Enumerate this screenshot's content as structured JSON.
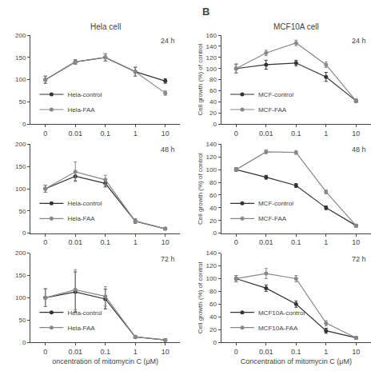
{
  "title": "B",
  "chart_data": [
    {
      "type": "line",
      "title": "Hela cell",
      "categories": [
        "0",
        "0.01",
        "0.1",
        "1",
        "10"
      ],
      "series": [
        {
          "name": "Hela-control",
          "color": "#333333",
          "values": [
            100,
            140,
            150,
            118,
            97
          ],
          "errors": [
            8,
            5,
            8,
            10,
            5
          ]
        },
        {
          "name": "Hela-FAA",
          "color": "#888888",
          "values": [
            100,
            140,
            150,
            118,
            70
          ],
          "errors": [
            8,
            5,
            8,
            10,
            5
          ]
        }
      ],
      "ylim": [
        0,
        200
      ],
      "yticks": [
        0,
        50,
        100,
        150,
        200
      ],
      "annotations": [
        "24 h"
      ],
      "legend": "lower left",
      "grid": false,
      "marker": "circle",
      "line_style": "solid"
    },
    {
      "type": "line",
      "title": "MCF10A cell",
      "categories": [
        "0",
        "0.01",
        "0.1",
        "1",
        "10"
      ],
      "series": [
        {
          "name": "MCF-control",
          "color": "#333333",
          "values": [
            100,
            107,
            110,
            85,
            42
          ],
          "errors": [
            8,
            8,
            5,
            8,
            3
          ]
        },
        {
          "name": "MCF-FAA",
          "color": "#888888",
          "values": [
            100,
            128,
            146,
            107,
            42
          ],
          "errors": [
            8,
            5,
            5,
            5,
            3
          ]
        }
      ],
      "ylim": [
        0,
        160
      ],
      "yticks": [
        0,
        20,
        40,
        60,
        80,
        100,
        120,
        140,
        160
      ],
      "ylabel": "Cell growth (%) of control",
      "annotations": [
        "24 h"
      ],
      "legend": "lower left",
      "grid": false,
      "marker": "circle",
      "line_style": "solid"
    },
    {
      "type": "line",
      "categories": [
        "0",
        "0.01",
        "0.1",
        "1",
        "10"
      ],
      "series": [
        {
          "name": "Hela-control",
          "color": "#333333",
          "values": [
            100,
            128,
            112,
            27,
            10
          ],
          "errors": [
            8,
            10,
            8,
            5,
            2
          ]
        },
        {
          "name": "Hela-FAA",
          "color": "#888888",
          "values": [
            100,
            138,
            120,
            27,
            10
          ],
          "errors": [
            8,
            22,
            10,
            5,
            2
          ]
        }
      ],
      "ylim": [
        0,
        200
      ],
      "yticks": [
        0,
        50,
        100,
        150,
        200
      ],
      "annotations": [
        "48 h"
      ],
      "legend": "lower left",
      "grid": false,
      "marker": "circle",
      "line_style": "solid"
    },
    {
      "type": "line",
      "categories": [
        "0",
        "0.01",
        "0.1",
        "1",
        "10"
      ],
      "series": [
        {
          "name": "MCF-control",
          "color": "#333333",
          "values": [
            100,
            88,
            75,
            40,
            12
          ],
          "errors": [
            3,
            3,
            3,
            3,
            2
          ]
        },
        {
          "name": "MCF-FAA",
          "color": "#888888",
          "values": [
            100,
            128,
            127,
            65,
            12
          ],
          "errors": [
            3,
            3,
            3,
            3,
            2
          ]
        }
      ],
      "ylim": [
        0,
        140
      ],
      "yticks": [
        0,
        20,
        40,
        60,
        80,
        100,
        120,
        140
      ],
      "ylabel": "Cell growth (%) of control",
      "annotations": [
        "48 h"
      ],
      "legend": "lower left",
      "grid": false,
      "marker": "circle",
      "line_style": "solid"
    },
    {
      "type": "line",
      "categories": [
        "0",
        "0.01",
        "0.1",
        "1",
        "10"
      ],
      "series": [
        {
          "name": "Hela-control",
          "color": "#333333",
          "values": [
            100,
            113,
            97,
            12,
            5
          ],
          "errors": [
            20,
            45,
            22,
            3,
            2
          ]
        },
        {
          "name": "Hela-FAA",
          "color": "#888888",
          "values": [
            100,
            118,
            103,
            12,
            5
          ],
          "errors": [
            20,
            45,
            22,
            3,
            2
          ]
        }
      ],
      "ylim": [
        0,
        200
      ],
      "yticks": [
        0,
        50,
        100,
        150,
        200
      ],
      "xlabel": "oncentration of mitomycin C (μM)",
      "annotations": [
        "72 h"
      ],
      "legend": "lower left",
      "grid": false,
      "marker": "circle",
      "line_style": "solid"
    },
    {
      "type": "line",
      "categories": [
        "0",
        "0.01",
        "0.1",
        "1",
        "10"
      ],
      "series": [
        {
          "name": "MCF10A-control",
          "color": "#333333",
          "values": [
            100,
            85,
            60,
            18,
            7
          ],
          "errors": [
            5,
            5,
            5,
            4,
            2
          ]
        },
        {
          "name": "MCF10A-FAA",
          "color": "#888888",
          "values": [
            100,
            108,
            100,
            30,
            7
          ],
          "errors": [
            5,
            8,
            5,
            4,
            2
          ]
        }
      ],
      "ylim": [
        0,
        140
      ],
      "yticks": [
        0,
        20,
        40,
        60,
        80,
        100,
        120,
        140
      ],
      "xlabel": "Concentration of mitomycin C (μM)",
      "ylabel": "Cell growth (%) of control",
      "annotations": [
        "72 h"
      ],
      "legend": "lower left",
      "grid": false,
      "marker": "circle",
      "line_style": "solid"
    }
  ]
}
